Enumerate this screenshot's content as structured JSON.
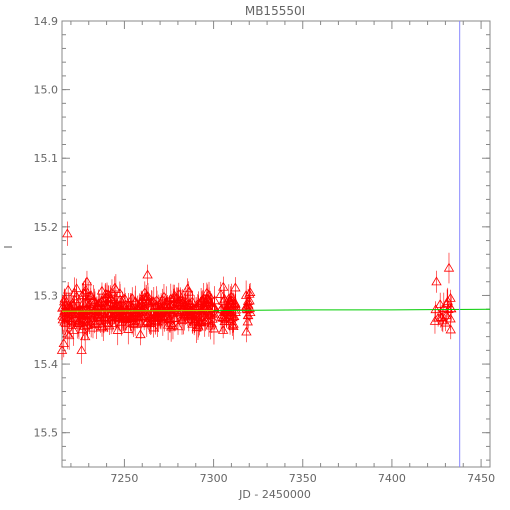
{
  "chart_data": {
    "type": "scatter",
    "title": "MB15550I",
    "xlabel": "JD - 2450000",
    "ylabel": "I",
    "xlim": [
      7215,
      7455
    ],
    "ylim": [
      15.55,
      14.9
    ],
    "y_inverted": true,
    "x_ticks": [
      7250,
      7300,
      7350,
      7400,
      7450
    ],
    "y_ticks": [
      14.9,
      15.0,
      15.1,
      15.2,
      15.3,
      15.4,
      15.5
    ],
    "y_tick_labels": [
      "14.9",
      "15.0",
      "15.1",
      "15.2",
      "15.3",
      "15.4",
      "15.5"
    ],
    "grid": false,
    "colors": {
      "points": "#ff0000",
      "model_green": "#00cc00",
      "model_yellow": "#cccc00",
      "marker_line": "#8888ff",
      "axes": "#888888"
    },
    "marker": "triangle",
    "vertical_line_x": 7438,
    "model": {
      "x": [
        7215,
        7260,
        7300,
        7350,
        7400,
        7455
      ],
      "y": [
        15.323,
        15.322,
        15.322,
        15.321,
        15.321,
        15.32
      ]
    },
    "model_yellow_range": [
      7215,
      7300
    ],
    "season1": {
      "xmin": 7215,
      "xmax": 7320,
      "ymean": 15.322,
      "spread": 0.018
    },
    "season2": {
      "xmin": 7424,
      "xmax": 7434,
      "ymean": 15.322,
      "spread": 0.016
    },
    "outliers": [
      {
        "x": 7218,
        "y": 15.21
      },
      {
        "x": 7226,
        "y": 15.38
      },
      {
        "x": 7228,
        "y": 15.36
      },
      {
        "x": 7216,
        "y": 15.37
      },
      {
        "x": 7229,
        "y": 15.28
      },
      {
        "x": 7263,
        "y": 15.27
      },
      {
        "x": 7432,
        "y": 15.26
      },
      {
        "x": 7425,
        "y": 15.28
      },
      {
        "x": 7430,
        "y": 15.34
      },
      {
        "x": 7433,
        "y": 15.35
      },
      {
        "x": 7215,
        "y": 15.38
      }
    ],
    "n_points_season1": 420,
    "n_points_season2": 16
  }
}
